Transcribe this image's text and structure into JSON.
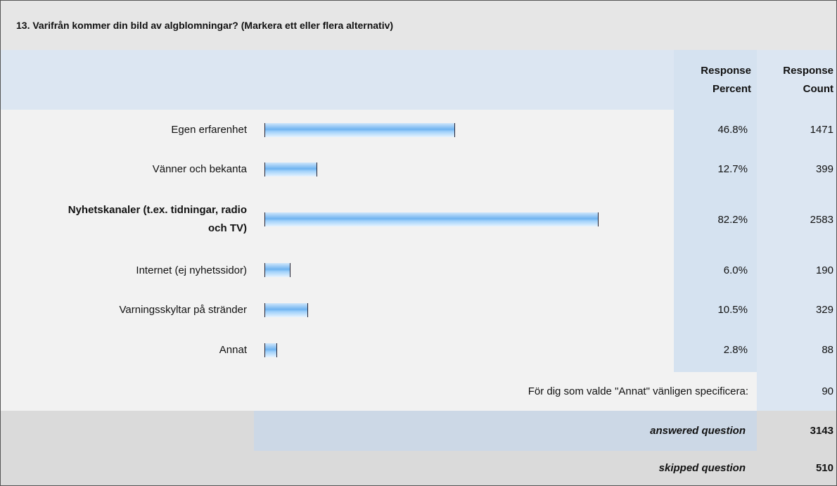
{
  "title": "13. Varifrån kommer din bild av algblomningar? (Markera ett eller flera alternativ)",
  "header": {
    "percent": "Response Percent",
    "count": "Response Count"
  },
  "rows": [
    {
      "label": "Egen erfarenhet",
      "percent": 46.8,
      "percent_label": "46.8%",
      "count": 1471
    },
    {
      "label": "Vänner och bekanta",
      "percent": 12.7,
      "percent_label": "12.7%",
      "count": 399
    },
    {
      "label": "Nyhetskanaler (t.ex. tidningar, radio och TV)",
      "percent": 82.2,
      "percent_label": "82.2%",
      "count": 2583
    },
    {
      "label": "Internet (ej nyhetssidor)",
      "percent": 6.0,
      "percent_label": "6.0%",
      "count": 190
    },
    {
      "label": "Varningsskyltar på stränder",
      "percent": 10.5,
      "percent_label": "10.5%",
      "count": 329
    },
    {
      "label": "Annat",
      "percent": 2.8,
      "percent_label": "2.8%",
      "count": 88
    }
  ],
  "other": {
    "label": "För dig som valde \"Annat\" vänligen specificera:",
    "count": 90
  },
  "answered": {
    "label": "answered question",
    "count": 3143
  },
  "skipped": {
    "label": "skipped question",
    "count": 510
  }
}
